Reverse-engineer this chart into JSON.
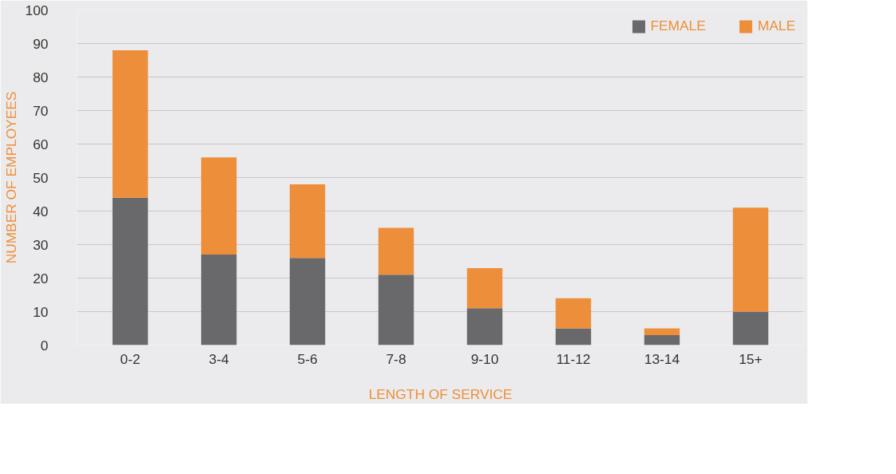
{
  "chart_data": {
    "type": "bar",
    "stacked": true,
    "xlabel": "LENGTH OF SERVICE",
    "ylabel": "NUMBER OF EMPLOYEES",
    "categories": [
      "0-2",
      "3-4",
      "5-6",
      "7-8",
      "9-10",
      "11-12",
      "13-14",
      "15+"
    ],
    "series": [
      {
        "name": "FEMALE",
        "color": "#69686a",
        "values": [
          44,
          27,
          26,
          21,
          11,
          5,
          3,
          10
        ]
      },
      {
        "name": "MALE",
        "color": "#ed8f3a",
        "values": [
          44,
          29,
          22,
          14,
          12,
          9,
          2,
          31
        ]
      }
    ],
    "ylim": [
      0,
      100
    ],
    "yticks": [
      0,
      10,
      20,
      30,
      40,
      50,
      60,
      70,
      80,
      90,
      100
    ],
    "grid": "y",
    "legend": "top right"
  }
}
